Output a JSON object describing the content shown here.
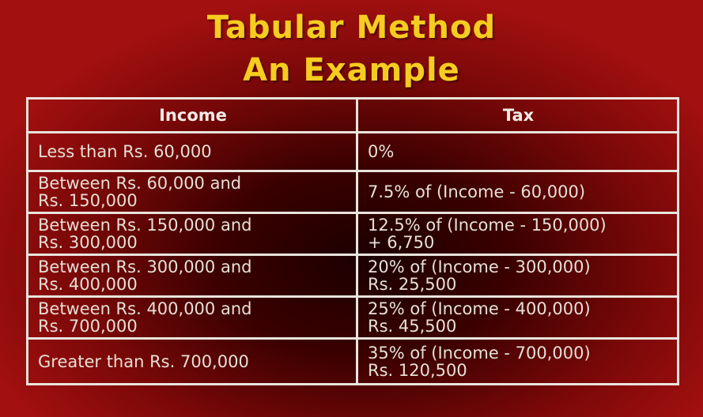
{
  "title": {
    "line1": "Tabular Method",
    "line2": "An Example"
  },
  "table": {
    "headers": [
      "Income",
      "Tax"
    ],
    "rows": [
      {
        "income": [
          "Less than Rs. 60,000"
        ],
        "tax": [
          "0%"
        ]
      },
      {
        "income": [
          "Between Rs. 60,000 and",
          "Rs. 150,000"
        ],
        "tax": [
          "7.5% of (Income - 60,000)"
        ]
      },
      {
        "income": [
          "Between Rs. 150,000 and",
          "Rs. 300,000"
        ],
        "tax": [
          "12.5% of (Income - 150,000)",
          "+ 6,750"
        ]
      },
      {
        "income": [
          "Between Rs. 300,000 and",
          "Rs. 400,000"
        ],
        "tax": [
          "20% of (Income - 300,000)",
          "Rs. 25,500"
        ]
      },
      {
        "income": [
          "Between Rs. 400,000 and",
          "Rs. 700,000"
        ],
        "tax": [
          "25% of (Income - 400,000)",
          "Rs. 45,500"
        ]
      },
      {
        "income": [
          "Greater than Rs. 700,000"
        ],
        "tax": [
          "35% of (Income - 700,000)",
          "Rs. 120,500"
        ]
      }
    ]
  },
  "colors": {
    "title": "#f5cc20",
    "background": "#9a0f0f",
    "text": "#e6e0d6",
    "grid": "#e9e4dc"
  }
}
